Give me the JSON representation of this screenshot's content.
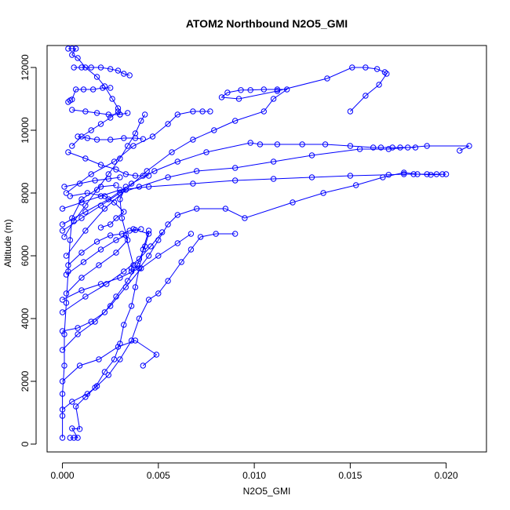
{
  "chart_data": {
    "type": "scatter",
    "title": "ATOM2 Northbound N2O5_GMI",
    "xlabel": "N2O5_GMI",
    "ylabel": "Altitude (m)",
    "xlim": [
      -0.0008,
      0.0221
    ],
    "ylim": [
      -250,
      12700
    ],
    "x_ticks": [
      0.0,
      0.005,
      0.01,
      0.015,
      0.02
    ],
    "x_tick_labels": [
      "0.000",
      "0.005",
      "0.010",
      "0.015",
      "0.020"
    ],
    "y_ticks": [
      0,
      2000,
      4000,
      6000,
      8000,
      10000,
      12000
    ],
    "y_tick_labels": [
      "0",
      "2000",
      "4000",
      "6000",
      "8000",
      "10000",
      "12000"
    ],
    "grid": false,
    "series_color": "#0000ff",
    "marker": "open-circle",
    "segments": [
      [
        [
          0,
          200
        ],
        [
          0,
          900
        ],
        [
          0,
          1600
        ],
        [
          0.0001,
          2500
        ],
        [
          0.0001,
          3500
        ],
        [
          0.0002,
          4500
        ],
        [
          0.0003,
          5500
        ],
        [
          0.0004,
          6500
        ],
        [
          0.0005,
          7200
        ],
        [
          0.001,
          7800
        ],
        [
          0.002,
          8200
        ],
        [
          0.0028,
          8250
        ]
      ],
      [
        [
          0.0004,
          200
        ],
        [
          0.0006,
          200
        ],
        [
          0.0008,
          200
        ],
        [
          0.0005,
          500
        ],
        [
          0.0009,
          480
        ],
        [
          0.0007,
          1200
        ],
        [
          0.0012,
          1500
        ],
        [
          0.0017,
          1800
        ],
        [
          0.0022,
          2300
        ],
        [
          0.0027,
          2700
        ],
        [
          0.003,
          3200
        ],
        [
          0.0032,
          3800
        ],
        [
          0.0036,
          4400
        ],
        [
          0.0038,
          5000
        ],
        [
          0.004,
          5600
        ],
        [
          0.0042,
          6200
        ],
        [
          0.0045,
          6800
        ]
      ],
      [
        [
          0,
          2000
        ],
        [
          0.0009,
          2500
        ],
        [
          0.0019,
          2700
        ],
        [
          0.0029,
          3100
        ],
        [
          0.0038,
          3300
        ],
        [
          0.0049,
          2850
        ],
        [
          0.0042,
          2500
        ]
      ],
      [
        [
          0,
          3600
        ],
        [
          0.0008,
          3700
        ],
        [
          0.0015,
          3900
        ],
        [
          0.0022,
          4200
        ],
        [
          0.0028,
          4700
        ],
        [
          0.0034,
          5200
        ],
        [
          0.0039,
          5700
        ],
        [
          0.0043,
          6300
        ],
        [
          0.0045,
          6700
        ],
        [
          0.0037,
          6850
        ]
      ],
      [
        [
          0,
          1100
        ],
        [
          0.0005,
          1350
        ],
        [
          0.0013,
          1600
        ],
        [
          0.0018,
          1850
        ],
        [
          0.0024,
          2200
        ],
        [
          0.003,
          2700
        ],
        [
          0.0036,
          3300
        ],
        [
          0.004,
          4000
        ],
        [
          0.0045,
          4600
        ],
        [
          0.005,
          4800
        ],
        [
          0.0055,
          5200
        ],
        [
          0.0062,
          5800
        ],
        [
          0.0067,
          6200
        ],
        [
          0.0072,
          6600
        ],
        [
          0.008,
          6700
        ],
        [
          0.009,
          6700
        ]
      ],
      [
        [
          0,
          4600
        ],
        [
          0.001,
          4900
        ],
        [
          0.002,
          5100
        ],
        [
          0.003,
          5300
        ],
        [
          0.004,
          5600
        ],
        [
          0.0045,
          6000
        ],
        [
          0.005,
          6500
        ],
        [
          0.0055,
          7000
        ],
        [
          0.006,
          7300
        ],
        [
          0.007,
          7500
        ],
        [
          0.0085,
          7500
        ],
        [
          0.0095,
          7200
        ],
        [
          0.012,
          7700
        ],
        [
          0.0136,
          8000
        ],
        [
          0.0153,
          8250
        ],
        [
          0.0167,
          8500
        ],
        [
          0.0178,
          8650
        ],
        [
          0.0185,
          8600
        ],
        [
          0.0192,
          8580
        ],
        [
          0.02,
          8600
        ]
      ],
      [
        [
          0,
          7500
        ],
        [
          0.001,
          7700
        ],
        [
          0.002,
          7900
        ],
        [
          0.003,
          8100
        ],
        [
          0.0045,
          8200
        ],
        [
          0.0068,
          8300
        ],
        [
          0.009,
          8400
        ],
        [
          0.011,
          8450
        ],
        [
          0.013,
          8500
        ],
        [
          0.015,
          8550
        ],
        [
          0.017,
          8580
        ],
        [
          0.0178,
          8600
        ],
        [
          0.0183,
          8600
        ],
        [
          0.019,
          8600
        ],
        [
          0.0195,
          8600
        ],
        [
          0.0198,
          8600
        ]
      ],
      [
        [
          0,
          6800
        ],
        [
          0.001,
          7200
        ],
        [
          0.002,
          7600
        ],
        [
          0.003,
          8000
        ],
        [
          0.004,
          8200
        ],
        [
          0.0055,
          8500
        ],
        [
          0.007,
          8700
        ],
        [
          0.009,
          8800
        ],
        [
          0.011,
          9000
        ],
        [
          0.013,
          9200
        ],
        [
          0.0155,
          9400
        ],
        [
          0.017,
          9400
        ],
        [
          0.019,
          9500
        ],
        [
          0.0212,
          9500
        ],
        [
          0.0207,
          9350
        ]
      ],
      [
        [
          0,
          7000
        ],
        [
          0.0012,
          7400
        ],
        [
          0.0024,
          7800
        ],
        [
          0.0036,
          8300
        ],
        [
          0.0048,
          8700
        ],
        [
          0.006,
          9000
        ],
        [
          0.0075,
          9300
        ],
        [
          0.0098,
          9600
        ],
        [
          0.0103,
          9550
        ],
        [
          0.0112,
          9550
        ],
        [
          0.0125,
          9550
        ],
        [
          0.0137,
          9550
        ],
        [
          0.015,
          9500
        ],
        [
          0.0162,
          9450
        ],
        [
          0.0166,
          9450
        ],
        [
          0.0172,
          9450
        ],
        [
          0.0176,
          9450
        ],
        [
          0.018,
          9450
        ],
        [
          0.0184,
          9450
        ]
      ],
      [
        [
          0.0002,
          6000
        ],
        [
          0.0012,
          6800
        ],
        [
          0.0022,
          7500
        ],
        [
          0.0033,
          8100
        ],
        [
          0.0044,
          8700
        ],
        [
          0.0057,
          9300
        ],
        [
          0.0068,
          9700
        ],
        [
          0.0079,
          10000
        ],
        [
          0.009,
          10300
        ],
        [
          0.0105,
          10600
        ],
        [
          0.011,
          11000
        ],
        [
          0.0117,
          11300
        ],
        [
          0.0112,
          11300
        ],
        [
          0.0105,
          11300
        ],
        [
          0.0098,
          11280
        ],
        [
          0.0093,
          11280
        ],
        [
          0.0086,
          11200
        ],
        [
          0.0083,
          11050
        ],
        [
          0.0092,
          11000
        ],
        [
          0.0112,
          11250
        ],
        [
          0.0138,
          11650
        ],
        [
          0.0151,
          12000
        ],
        [
          0.0158,
          12000
        ],
        [
          0.0164,
          11950
        ],
        [
          0.0168,
          11850
        ],
        [
          0.0169,
          11800
        ],
        [
          0.0165,
          11450
        ],
        [
          0.0158,
          11100
        ],
        [
          0.015,
          10600
        ]
      ],
      [
        [
          0.0002,
          8000
        ],
        [
          0.0015,
          8600
        ],
        [
          0.0027,
          9000
        ],
        [
          0.0037,
          9500
        ],
        [
          0.0047,
          9800
        ],
        [
          0.0055,
          10200
        ],
        [
          0.006,
          10500
        ],
        [
          0.0068,
          10600
        ],
        [
          0.0073,
          10600
        ],
        [
          0.0077,
          10600
        ]
      ],
      [
        [
          0.0008,
          9800
        ],
        [
          0.0013,
          9750
        ],
        [
          0.0018,
          9700
        ],
        [
          0.0025,
          9700
        ],
        [
          0.0032,
          9750
        ],
        [
          0.0038,
          9750
        ],
        [
          0.0042,
          9720
        ]
      ],
      [
        [
          0.0003,
          10900
        ],
        [
          0.0004,
          10950
        ],
        [
          0.0005,
          10980
        ],
        [
          0.0007,
          11300
        ],
        [
          0.0011,
          11300
        ],
        [
          0.0016,
          11300
        ],
        [
          0.0021,
          11350
        ],
        [
          0.0025,
          11350
        ]
      ],
      [
        [
          0.0006,
          12000
        ],
        [
          0.001,
          12000
        ],
        [
          0.0015,
          12000
        ],
        [
          0.002,
          12000
        ],
        [
          0.0025,
          11950
        ],
        [
          0.0029,
          11900
        ],
        [
          0.0032,
          11800
        ],
        [
          0.0035,
          11750
        ]
      ],
      [
        [
          0.0003,
          12600
        ],
        [
          0.0005,
          12600
        ],
        [
          0.0007,
          12600
        ],
        [
          0.0005,
          12400
        ],
        [
          0.0008,
          12300
        ],
        [
          0.0012,
          12000
        ],
        [
          0.0018,
          11700
        ],
        [
          0.0022,
          11400
        ],
        [
          0.0026,
          11000
        ],
        [
          0.0029,
          10700
        ],
        [
          0.003,
          10500
        ]
      ],
      [
        [
          0.0005,
          10650
        ],
        [
          0.0012,
          10600
        ],
        [
          0.0018,
          10550
        ],
        [
          0.0024,
          10500
        ],
        [
          0.003,
          10500
        ],
        [
          0.0034,
          10550
        ]
      ],
      [
        [
          0.0003,
          9300
        ],
        [
          0.0012,
          9100
        ],
        [
          0.002,
          8900
        ],
        [
          0.0028,
          8750
        ],
        [
          0.0033,
          8600
        ],
        [
          0.0038,
          8550
        ],
        [
          0.0042,
          8550
        ],
        [
          0.0045,
          8550
        ]
      ],
      [
        [
          0.0001,
          8200
        ],
        [
          0.0009,
          8300
        ],
        [
          0.0017,
          8400
        ],
        [
          0.0024,
          8450
        ],
        [
          0.003,
          8500
        ]
      ],
      [
        [
          0.0003,
          5700
        ],
        [
          0.001,
          6100
        ],
        [
          0.0018,
          6450
        ],
        [
          0.0025,
          6650
        ],
        [
          0.0031,
          6700
        ],
        [
          0.0035,
          6800
        ],
        [
          0.0038,
          6820
        ],
        [
          0.0041,
          6850
        ]
      ],
      [
        [
          0.0002,
          5400
        ],
        [
          0.0011,
          5800
        ],
        [
          0.002,
          6200
        ],
        [
          0.0028,
          6500
        ],
        [
          0.0033,
          6650
        ],
        [
          0.0037,
          5700
        ],
        [
          0.0036,
          5600
        ],
        [
          0.0036,
          5500
        ]
      ],
      [
        [
          0,
          4200
        ],
        [
          0.0012,
          4700
        ],
        [
          0.0023,
          5100
        ],
        [
          0.0032,
          5500
        ],
        [
          0.004,
          5900
        ],
        [
          0.0046,
          6300
        ],
        [
          0.0052,
          6750
        ]
      ],
      [
        [
          0,
          3000
        ],
        [
          0.0008,
          3500
        ],
        [
          0.0017,
          3900
        ],
        [
          0.0025,
          4400
        ],
        [
          0.0033,
          5000
        ],
        [
          0.0041,
          5600
        ],
        [
          0.005,
          6000
        ],
        [
          0.006,
          6400
        ],
        [
          0.0067,
          6700
        ]
      ],
      [
        [
          0.0004,
          7900
        ],
        [
          0.0013,
          8000
        ],
        [
          0.0022,
          7900
        ],
        [
          0.0027,
          7700
        ],
        [
          0.0032,
          7400
        ],
        [
          0.0028,
          7200
        ],
        [
          0.0025,
          7000
        ],
        [
          0.002,
          6900
        ]
      ],
      [
        [
          0.0001,
          6600
        ],
        [
          0.0006,
          7100
        ],
        [
          0.0012,
          7600
        ],
        [
          0.0018,
          8100
        ],
        [
          0.0024,
          8600
        ],
        [
          0.003,
          9100
        ],
        [
          0.0034,
          9500
        ],
        [
          0.0038,
          9900
        ],
        [
          0.0041,
          10300
        ],
        [
          0.0043,
          10500
        ]
      ],
      [
        [
          0.0005,
          9500
        ],
        [
          0.001,
          9800
        ],
        [
          0.0015,
          10000
        ],
        [
          0.002,
          10200
        ],
        [
          0.0025,
          10400
        ],
        [
          0.0029,
          10600
        ]
      ],
      [
        [
          0.0002,
          4800
        ],
        [
          0.001,
          5300
        ],
        [
          0.0019,
          5700
        ],
        [
          0.0028,
          6100
        ],
        [
          0.0034,
          6500
        ],
        [
          0.0031,
          7200
        ],
        [
          0.003,
          7800
        ],
        [
          0.0033,
          8200
        ]
      ]
    ]
  }
}
